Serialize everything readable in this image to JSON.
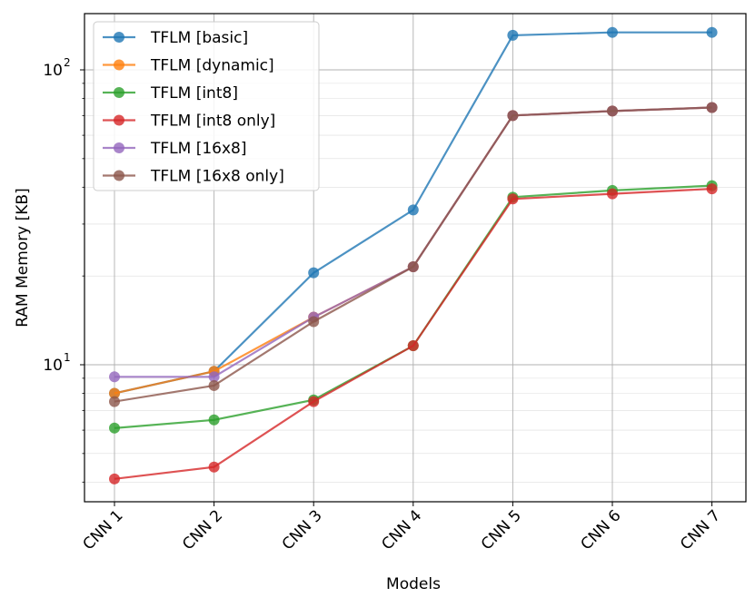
{
  "chart_data": {
    "type": "line",
    "xlabel": "Models",
    "ylabel": "RAM Memory [KB]",
    "yscale": "log",
    "ylim": [
      3.4,
      160
    ],
    "yticks": [
      {
        "value": 10,
        "base": "10",
        "exp": "1"
      },
      {
        "value": 100,
        "base": "10",
        "exp": "2"
      }
    ],
    "grid": true,
    "legend_position": "top-left",
    "categories": [
      "CNN 1",
      "CNN 2",
      "CNN 3",
      "CNN 4",
      "CNN 5",
      "CNN 6",
      "CNN 7"
    ],
    "series": [
      {
        "name": "TFLM [basic]",
        "color": "#1f77b4",
        "values": [
          8.0,
          9.5,
          20.5,
          33.5,
          131,
          134,
          134
        ]
      },
      {
        "name": "TFLM [dynamic]",
        "color": "#ff7f0e",
        "values": [
          8.0,
          9.5,
          14.5,
          21.5,
          70,
          72.5,
          74.5
        ]
      },
      {
        "name": "TFLM [int8]",
        "color": "#2ca02c",
        "values": [
          6.1,
          6.5,
          7.6,
          11.6,
          37,
          39,
          40.5
        ]
      },
      {
        "name": "TFLM [int8 only]",
        "color": "#d62728",
        "values": [
          4.1,
          4.5,
          7.5,
          11.6,
          36.5,
          38,
          39.5
        ]
      },
      {
        "name": "TFLM [16x8]",
        "color": "#9467bd",
        "values": [
          9.1,
          9.1,
          14.5,
          21.5,
          70,
          72.5,
          74.5
        ]
      },
      {
        "name": "TFLM [16x8 only]",
        "color": "#8c564b",
        "values": [
          7.5,
          8.5,
          14.0,
          21.5,
          70,
          72.5,
          74.5
        ]
      }
    ]
  }
}
